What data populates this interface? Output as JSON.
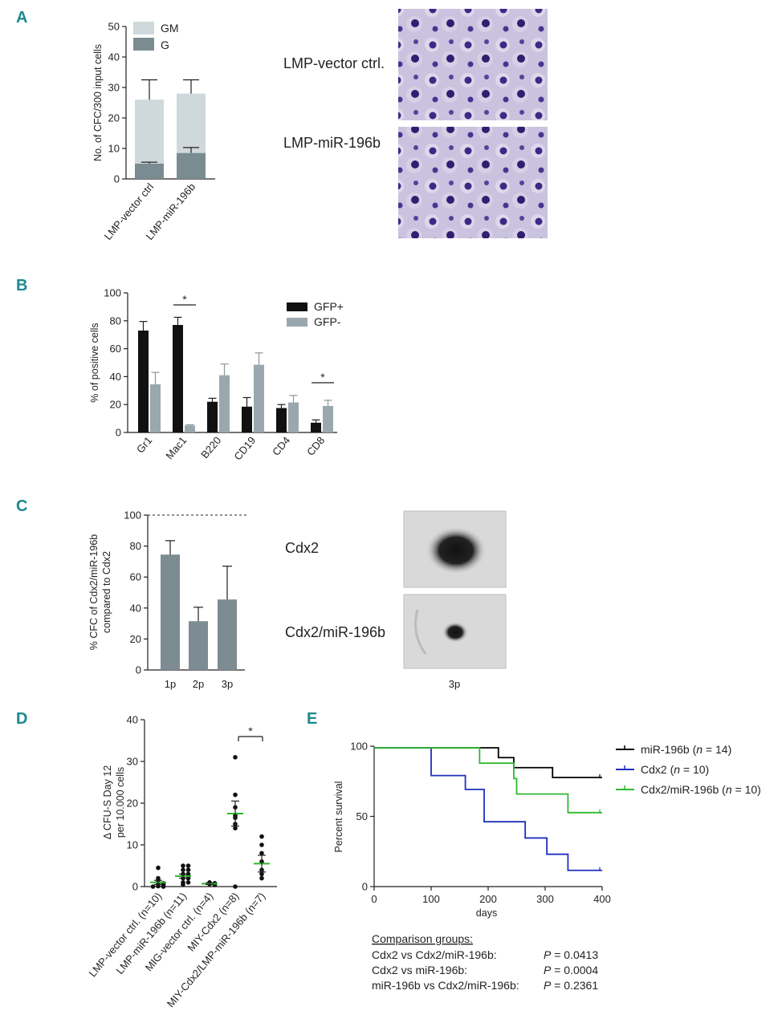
{
  "panels": {
    "a": "A",
    "b": "B",
    "c": "C",
    "d": "D",
    "e": "E"
  },
  "micrographs": {
    "a_top_label": "LMP-vector ctrl.",
    "a_bottom_label": "LMP-miR-196b",
    "c_top_label": "Cdx2",
    "c_bottom_label": "Cdx2/miR-196b",
    "c_caption": "3p"
  },
  "colors": {
    "gm": "#cfd8db",
    "g": "#7b8b92",
    "gfp_pos": "#111111",
    "gfp_neg": "#9aa7ae",
    "bar_c": "#7d8b92",
    "mir": "#000000",
    "cdx2": "#1f2fbf",
    "combo": "#2fb82f",
    "mean_d": "#2fb82f"
  },
  "chart_data": [
    {
      "id": "A",
      "type": "bar",
      "stacked": true,
      "categories": [
        "LMP-vector ctrl",
        "LMP-miR-196b"
      ],
      "series": [
        {
          "name": "G",
          "values": [
            5,
            8.5
          ],
          "errors": [
            0.5,
            1.8
          ]
        },
        {
          "name": "GM",
          "values": [
            21,
            19.5
          ],
          "errors": [
            6.5,
            4.5
          ]
        }
      ],
      "legend": [
        "GM",
        "G"
      ],
      "ylabel": "No. of  CFC/300 input cells",
      "ylim": [
        0,
        50
      ],
      "yticks": [
        0,
        10,
        20,
        30,
        40,
        50
      ]
    },
    {
      "id": "B",
      "type": "bar",
      "categories": [
        "Gr1",
        "Mac1",
        "B220",
        "CD19",
        "CD4",
        "CD8"
      ],
      "series": [
        {
          "name": "GFP+",
          "values": [
            73,
            77,
            22,
            18.5,
            17.5,
            7
          ],
          "errors": [
            6.5,
            5.5,
            2.5,
            6.5,
            2.5,
            2
          ]
        },
        {
          "name": "GFP-",
          "values": [
            34.5,
            5,
            41,
            48.5,
            21.5,
            19
          ],
          "errors": [
            8.5,
            0.5,
            8,
            8.5,
            5,
            4
          ]
        }
      ],
      "ylabel": "% of positive cells",
      "ylim": [
        0,
        100
      ],
      "yticks": [
        0,
        20,
        40,
        60,
        80,
        100
      ],
      "annotations": [
        "*",
        "*"
      ]
    },
    {
      "id": "C",
      "type": "bar",
      "categories": [
        "1p",
        "2p",
        "3p"
      ],
      "values": [
        74.5,
        31.5,
        45.5
      ],
      "errors": [
        9,
        9,
        21.5
      ],
      "reference_line": 100,
      "ylabel": [
        "% CFC of Cdx2/miR-196b",
        "compared to Cdx2"
      ],
      "ylim": [
        0,
        100
      ],
      "yticks": [
        0,
        20,
        40,
        60,
        80,
        100
      ]
    },
    {
      "id": "D",
      "type": "scatter",
      "categories": [
        "LMP-vector ctrl. (n=10)",
        "LMP-miR-196b (n=11)",
        "MIG-vector ctrl. (n=4)",
        "MIY-Cdx2 (n=8)",
        "MIY-Cdx2/LMP-miR-196b (n=7)"
      ],
      "points": [
        [
          4.5,
          2,
          1.5,
          1,
          0.8,
          0.5,
          0.3,
          0.1,
          0,
          0
        ],
        [
          5,
          5,
          4,
          4,
          3,
          3,
          2,
          2,
          1,
          1,
          0.5
        ],
        [
          1,
          0.8,
          0.6,
          0.4
        ],
        [
          31,
          22,
          19,
          17,
          16.5,
          15,
          14,
          0
        ],
        [
          12,
          10,
          8,
          6,
          4,
          3,
          2
        ]
      ],
      "means": [
        1,
        2.5,
        0.7,
        17.5,
        5.5
      ],
      "sem": [
        0.5,
        0.5,
        0.2,
        3,
        2
      ],
      "ylabel": [
        "Δ CFU-S Day 12",
        "per 10.000 cells"
      ],
      "ylim": [
        0,
        40
      ],
      "yticks": [
        0,
        10,
        20,
        30,
        40
      ],
      "annotation": "*"
    },
    {
      "id": "E",
      "type": "line",
      "step": true,
      "xlabel": "days",
      "ylabel": "Percent survival",
      "xlim": [
        0,
        400
      ],
      "ylim": [
        0,
        100
      ],
      "xticks": [
        0,
        100,
        200,
        300,
        400
      ],
      "yticks": [
        0,
        50,
        100
      ],
      "series": [
        {
          "name": "miR-196b",
          "n_text": "n",
          "n_value": "= 14",
          "x": [
            0,
            218,
            245,
            313,
            400
          ],
          "y": [
            100,
            92.9,
            85.7,
            78.6,
            78.6
          ]
        },
        {
          "name": "Cdx2",
          "n_text": "n",
          "n_value": "= 10",
          "x": [
            0,
            100,
            160,
            193,
            265,
            303,
            340,
            400
          ],
          "y": [
            100,
            80,
            70,
            46.7,
            35,
            23.3,
            11.7,
            11.7
          ]
        },
        {
          "name": "Cdx2/miR-196b",
          "n_text": "n",
          "n_value": "= 10",
          "x": [
            0,
            185,
            245,
            250,
            340,
            400
          ],
          "y": [
            100,
            88.9,
            77.8,
            66.7,
            53.3,
            53.3
          ]
        }
      ],
      "comparison_title": "Comparison groups:",
      "comparisons": [
        {
          "label": "Cdx2 vs Cdx2/miR-196b:",
          "p": "P",
          "value": "= 0.0413"
        },
        {
          "label": "Cdx2 vs miR-196b:",
          "p": "P",
          "value": "= 0.0004"
        },
        {
          "label": "miR-196b vs Cdx2/miR-196b:",
          "p": "P",
          "value": "= 0.2361"
        }
      ]
    }
  ]
}
